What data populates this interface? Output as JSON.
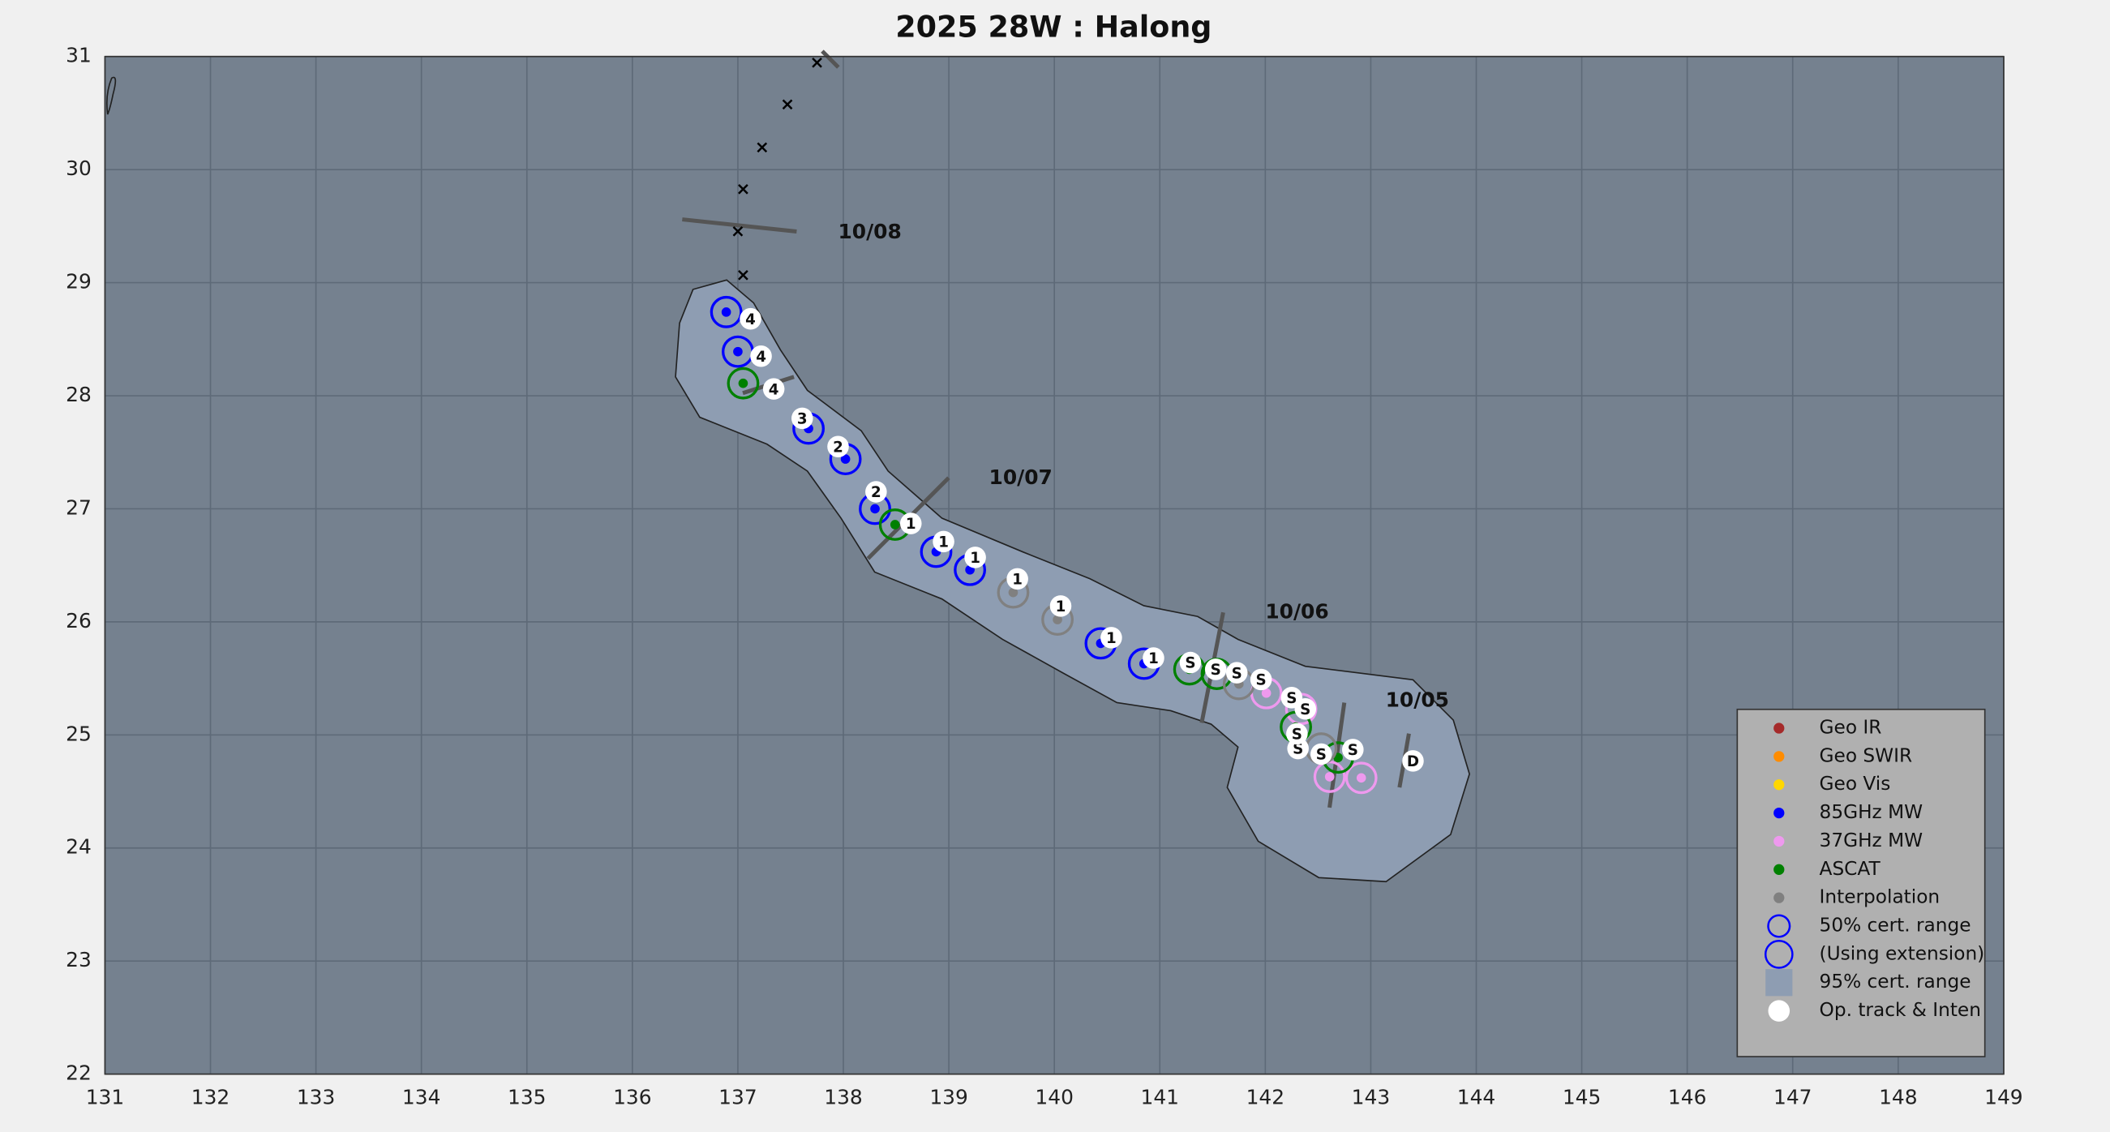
{
  "chart_data": {
    "type": "scatter",
    "title": "2025  28W :  Halong",
    "xlim": [
      131,
      149
    ],
    "xticks": [
      131,
      132,
      133,
      134,
      135,
      136,
      137,
      138,
      139,
      140,
      141,
      142,
      143,
      144,
      145,
      146,
      147,
      148,
      149
    ],
    "ylim": [
      22,
      31
    ],
    "yticks": [
      22,
      23,
      24,
      25,
      26,
      27,
      28,
      29,
      30,
      31
    ],
    "grid": true,
    "legend": "lower right",
    "series": [
      {
        "name": "Geo IR",
        "color": "#a52a2a",
        "x": [],
        "y": []
      },
      {
        "name": "Geo SWIR",
        "color": "#ff8c00",
        "x": [],
        "y": []
      },
      {
        "name": "Geo Vis",
        "color": "#ffd700",
        "x": [],
        "y": []
      },
      {
        "name": "85GHz MW",
        "color": "#0000ff",
        "x": [
          136.89,
          137.0,
          137.67,
          138.02,
          138.3,
          138.88,
          139.2,
          140.44,
          140.85
        ],
        "y": [
          28.74,
          28.39,
          27.71,
          27.44,
          27.0,
          26.62,
          26.46,
          25.81,
          25.63
        ]
      },
      {
        "name": "37GHz MW",
        "color": "#ee99ee",
        "x": [
          142.01,
          142.34,
          142.61,
          142.91
        ],
        "y": [
          25.37,
          25.23,
          24.63,
          24.62
        ]
      },
      {
        "name": "ASCAT",
        "color": "#008000",
        "x": [
          137.05,
          138.49,
          141.28,
          141.54,
          142.29,
          142.69
        ],
        "y": [
          28.11,
          26.86,
          25.58,
          25.54,
          25.07,
          24.8
        ]
      },
      {
        "name": "Interpolation",
        "color": "#808080",
        "x": [
          139.61,
          140.03,
          141.75,
          142.53
        ],
        "y": [
          26.26,
          26.02,
          25.45,
          24.88
        ]
      }
    ],
    "range_legend": [
      "50% cert. range",
      "(Using extension)",
      "95% cert. range"
    ],
    "track": {
      "name": "Op. track & Inten",
      "x": [
        143.4,
        142.83,
        142.53,
        142.31,
        142.3,
        142.38,
        142.25,
        141.96,
        141.73,
        141.53,
        141.29,
        140.94,
        140.54,
        140.06,
        139.65,
        139.25,
        138.95,
        138.64,
        138.31,
        137.95,
        137.61,
        137.34,
        137.22,
        137.12
      ],
      "y": [
        24.77,
        24.87,
        24.83,
        24.88,
        25.01,
        25.23,
        25.33,
        25.49,
        25.55,
        25.58,
        25.64,
        25.68,
        25.86,
        26.14,
        26.38,
        26.57,
        26.71,
        26.87,
        27.15,
        27.55,
        27.8,
        28.06,
        28.35,
        28.68
      ],
      "labels": [
        "D",
        "S",
        "S",
        "S",
        "S",
        "S",
        "S",
        "S",
        "S",
        "S",
        "S",
        "1",
        "1",
        "1",
        "1",
        "1",
        "1",
        "1",
        "2",
        "2",
        "3",
        "4",
        "4",
        "4"
      ]
    },
    "forecast": {
      "x": [
        137.05,
        137.0,
        137.05,
        137.23,
        137.47,
        137.75
      ],
      "y": [
        29.06,
        29.45,
        29.82,
        30.19,
        30.57,
        30.94
      ]
    },
    "annotations": [
      {
        "text": "10/08",
        "x": 137.95,
        "y": 29.44
      },
      {
        "text": "10/07",
        "x": 139.38,
        "y": 27.27
      },
      {
        "text": "10/06",
        "x": 142.0,
        "y": 26.08
      },
      {
        "text": "10/05",
        "x": 143.14,
        "y": 25.3
      }
    ]
  }
}
